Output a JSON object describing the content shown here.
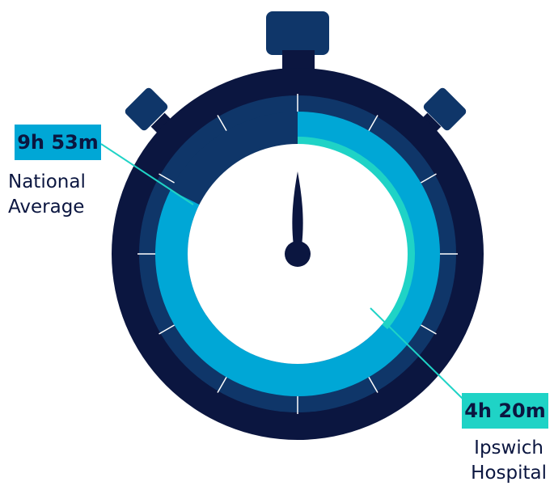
{
  "national": {
    "value": "9h 53m",
    "label_line1": "National",
    "label_line2": "Average",
    "fraction": 0.824
  },
  "ipswich": {
    "value": "4h 20m",
    "label_line1": "Ipswich",
    "label_line2": "Hospital",
    "fraction": 0.361
  },
  "colors": {
    "body": "#0b1640",
    "outer_ring": "#0f3669",
    "national_arc": "#00a7d6",
    "ipswich_arc": "#1fd3c6",
    "face": "#ffffff",
    "tick": "#ffffff",
    "hand": "#0b1640",
    "callout_line": "#1fd3c6"
  }
}
